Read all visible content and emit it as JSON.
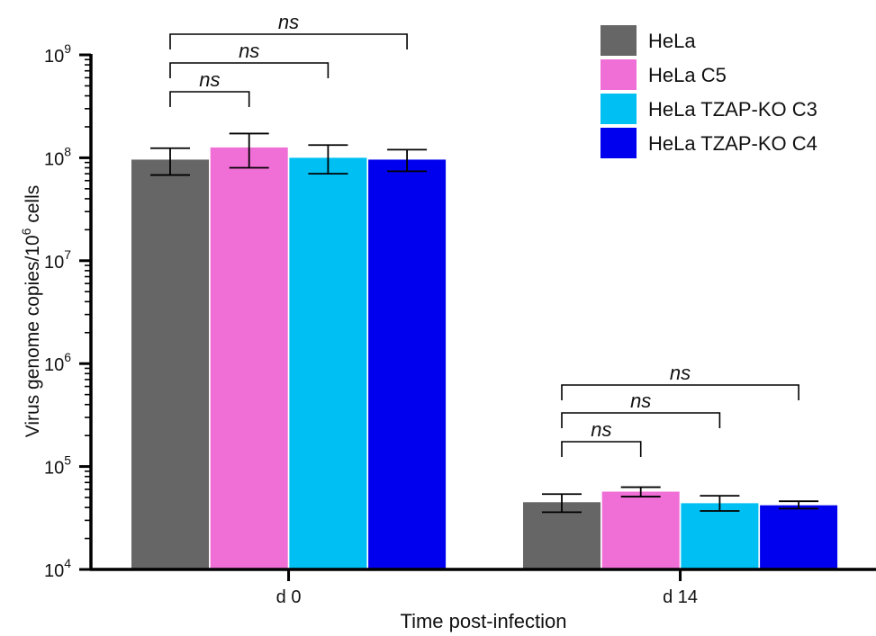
{
  "chart_data": {
    "type": "bar",
    "yscale": "log",
    "ylim": [
      10000,
      1000000000
    ],
    "ylabel": "Virus genome copies/10^6 cells",
    "ylabel_parts": {
      "main": "Virus genome copies/10",
      "sup": "6",
      "tail": " cells"
    },
    "xlabel": "Time post-infection",
    "categories": [
      "d 0",
      "d 14"
    ],
    "yticks": [
      {
        "value": 10000,
        "base": "10",
        "exp": "4"
      },
      {
        "value": 100000,
        "base": "10",
        "exp": "5"
      },
      {
        "value": 1000000,
        "base": "10",
        "exp": "6"
      },
      {
        "value": 10000000,
        "base": "10",
        "exp": "7"
      },
      {
        "value": 100000000,
        "base": "10",
        "exp": "8"
      },
      {
        "value": 1000000000,
        "base": "10",
        "exp": "9"
      }
    ],
    "series": [
      {
        "name": "HeLa",
        "color": "#666666",
        "values": [
          96000000,
          45000
        ],
        "error_low": [
          68000000,
          36000
        ],
        "error_high": [
          124000000,
          54000
        ]
      },
      {
        "name": "HeLa C5",
        "color": "#f06fd6",
        "values": [
          126000000,
          57000
        ],
        "error_low": [
          80000000,
          51000
        ],
        "error_high": [
          172000000,
          63000
        ]
      },
      {
        "name": "HeLa TZAP-KO C3",
        "color": "#00bff3",
        "values": [
          100000000,
          44000
        ],
        "error_low": [
          70000000,
          37000
        ],
        "error_high": [
          133000000,
          52000
        ]
      },
      {
        "name": "HeLa TZAP-KO C4",
        "color": "#0000ee",
        "values": [
          96000000,
          42000
        ],
        "error_low": [
          74000000,
          39000
        ],
        "error_high": [
          120000000,
          46000
        ]
      }
    ],
    "legend": {
      "position": "top-right"
    },
    "grid": false,
    "significance": [
      {
        "category": 0,
        "from_series": 0,
        "to_series": 1,
        "label": "ns"
      },
      {
        "category": 0,
        "from_series": 0,
        "to_series": 2,
        "label": "ns"
      },
      {
        "category": 0,
        "from_series": 0,
        "to_series": 3,
        "label": "ns"
      },
      {
        "category": 1,
        "from_series": 0,
        "to_series": 1,
        "label": "ns"
      },
      {
        "category": 1,
        "from_series": 0,
        "to_series": 2,
        "label": "ns"
      },
      {
        "category": 1,
        "from_series": 0,
        "to_series": 3,
        "label": "ns"
      }
    ]
  }
}
